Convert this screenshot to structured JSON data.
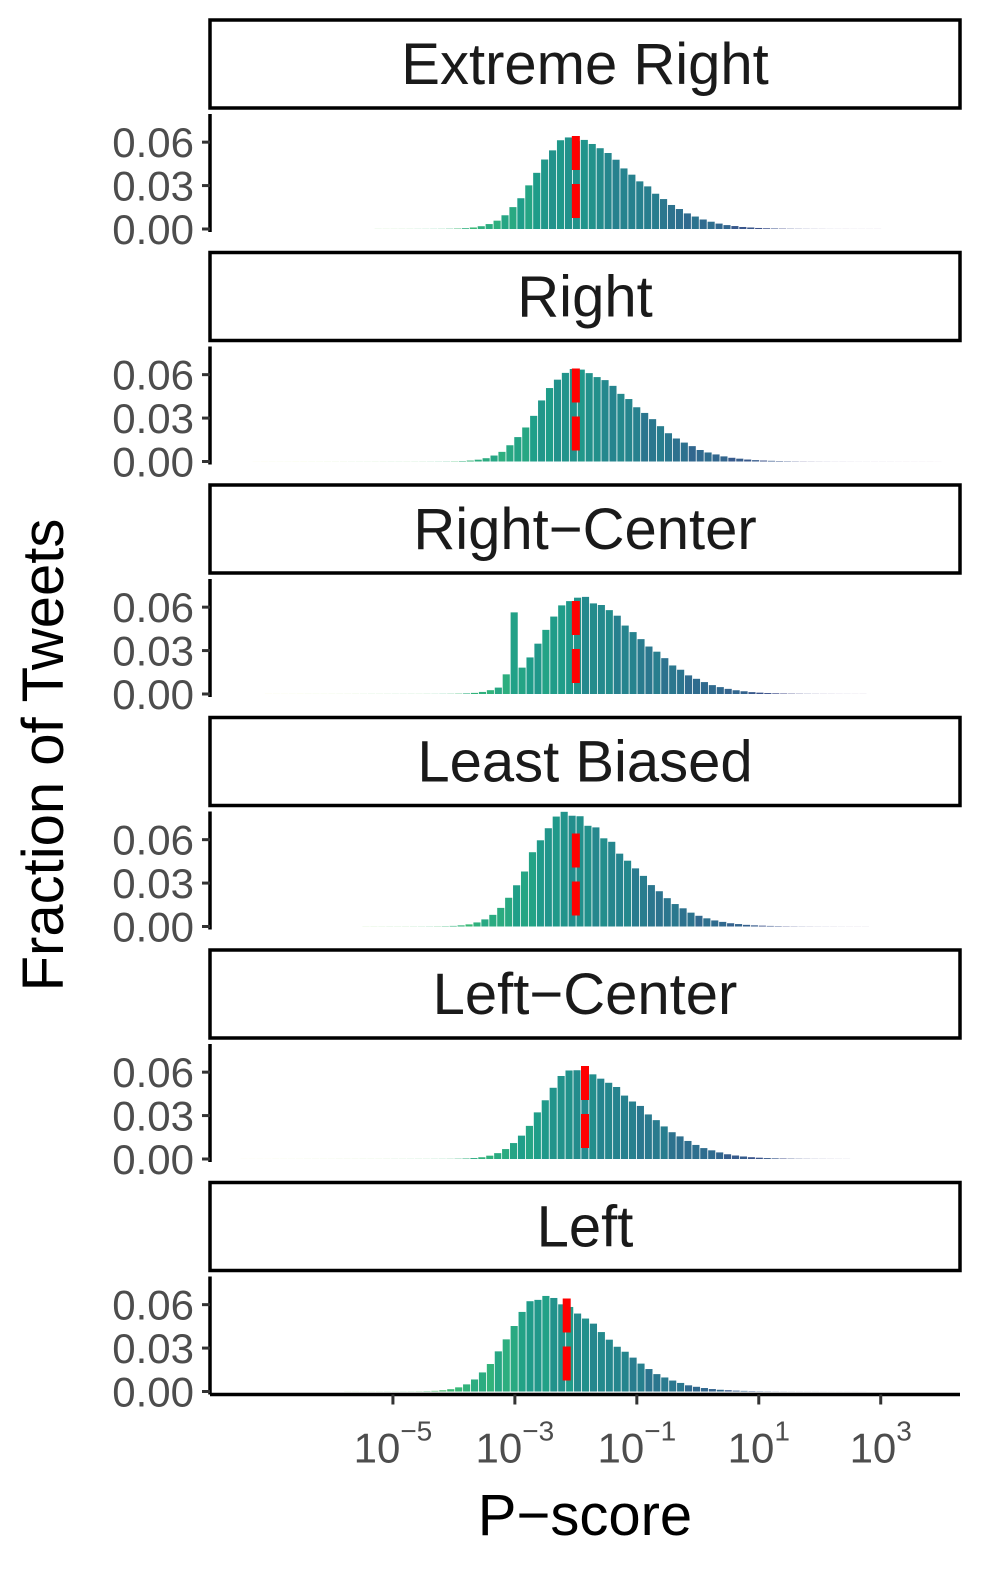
{
  "chart_data": {
    "type": "bar",
    "xlabel": "P−score",
    "ylabel": "Fraction of Tweets",
    "x_scale": "log10",
    "x_range_log10": [
      -8.0,
      4.3
    ],
    "ylim": [
      0,
      0.076
    ],
    "y_ticks": [
      0,
      0.03,
      0.06
    ],
    "y_tick_labels": [
      "0.00",
      "0.03",
      "0.06"
    ],
    "x_ticks": [
      {
        "base": "10",
        "exp": "−5",
        "log10": -5
      },
      {
        "base": "10",
        "exp": "−3",
        "log10": -3
      },
      {
        "base": "10",
        "exp": "−1",
        "log10": -1
      },
      {
        "base": "10",
        "exp": "1",
        "log10": 1
      },
      {
        "base": "10",
        "exp": "3",
        "log10": 3
      }
    ],
    "reference_line_color": "#ff0000",
    "color_scale": "viridis",
    "panels": [
      {
        "label": "Extreme Right",
        "peak_log10": -2.1,
        "peak_value": 0.062,
        "median_log10": -2.0,
        "range_log10": [
          -5.3,
          3.0
        ],
        "seed": 1
      },
      {
        "label": "Right",
        "peak_log10": -2.05,
        "peak_value": 0.064,
        "median_log10": -2.0,
        "range_log10": [
          -7.3,
          4.0
        ],
        "seed": 2
      },
      {
        "label": "Right−Center",
        "peak_log10": -2.0,
        "peak_value": 0.066,
        "median_log10": -2.0,
        "range_log10": [
          -7.1,
          2.7
        ],
        "seed": 3,
        "secondary_bump": {
          "log10": -3.0,
          "value": 0.055
        }
      },
      {
        "label": "Least Biased",
        "peak_log10": -2.2,
        "peak_value": 0.077,
        "median_log10": -2.0,
        "range_log10": [
          -5.5,
          2.7
        ],
        "seed": 4
      },
      {
        "label": "Left−Center",
        "peak_log10": -2.0,
        "peak_value": 0.061,
        "median_log10": -1.85,
        "range_log10": [
          -7.5,
          2.5
        ],
        "seed": 5
      },
      {
        "label": "Left",
        "peak_log10": -2.55,
        "peak_value": 0.065,
        "median_log10": -2.15,
        "range_log10": [
          -5.8,
          2.7
        ],
        "seed": 6
      }
    ]
  }
}
